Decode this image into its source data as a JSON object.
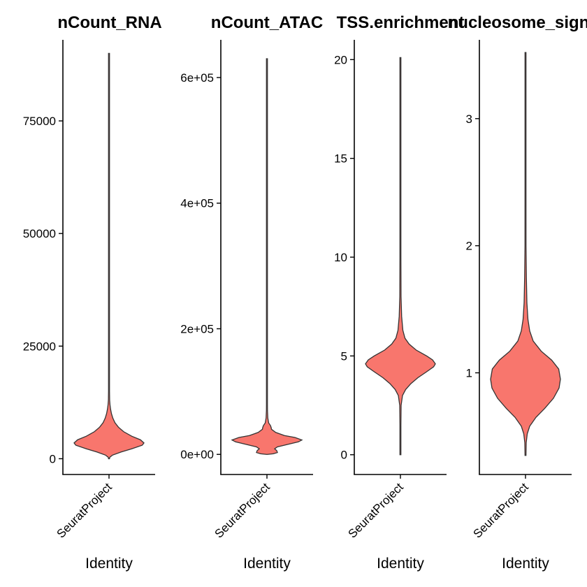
{
  "chart_data": [
    {
      "type": "violin",
      "title": "nCount_RNA",
      "xlabel": "Identity",
      "categories": [
        "SeuratProject"
      ],
      "ylim": [
        -3500,
        93000
      ],
      "yticks": [
        0,
        25000,
        50000,
        75000
      ],
      "ytick_labels": [
        "0",
        "25000",
        "50000",
        "75000"
      ],
      "fill": "#F8766D",
      "range": [
        0,
        90000
      ],
      "density": [
        [
          0,
          0.0
        ],
        [
          300,
          0.02
        ],
        [
          800,
          0.1
        ],
        [
          1500,
          0.35
        ],
        [
          2200,
          0.65
        ],
        [
          3000,
          0.95
        ],
        [
          3500,
          1.0
        ],
        [
          4200,
          0.9
        ],
        [
          5000,
          0.65
        ],
        [
          6000,
          0.42
        ],
        [
          7000,
          0.27
        ],
        [
          8000,
          0.17
        ],
        [
          9000,
          0.11
        ],
        [
          10000,
          0.07
        ],
        [
          11000,
          0.045
        ],
        [
          12000,
          0.028
        ],
        [
          13000,
          0.018
        ],
        [
          15000,
          0.01
        ],
        [
          20000,
          0.006
        ],
        [
          30000,
          0.004
        ],
        [
          50000,
          0.003
        ],
        [
          70000,
          0.0025
        ],
        [
          90000,
          0.0
        ]
      ]
    },
    {
      "type": "violin",
      "title": "nCount_ATAC",
      "xlabel": "Identity",
      "categories": [
        "SeuratProject"
      ],
      "ylim": [
        -32000,
        660000
      ],
      "yticks": [
        0,
        200000,
        400000,
        600000
      ],
      "ytick_labels": [
        "0e+00",
        "2e+05",
        "4e+05",
        "6e+05"
      ],
      "fill": "#F8766D",
      "range": [
        0,
        630000
      ],
      "density": [
        [
          0,
          0.0
        ],
        [
          1000,
          0.18
        ],
        [
          3000,
          0.3
        ],
        [
          6000,
          0.28
        ],
        [
          9000,
          0.22
        ],
        [
          12000,
          0.3
        ],
        [
          16000,
          0.6
        ],
        [
          20000,
          0.9
        ],
        [
          23000,
          1.0
        ],
        [
          27000,
          0.8
        ],
        [
          30000,
          0.5
        ],
        [
          35000,
          0.25
        ],
        [
          40000,
          0.13
        ],
        [
          43000,
          0.12
        ],
        [
          46000,
          0.1
        ],
        [
          50000,
          0.05
        ],
        [
          58000,
          0.025
        ],
        [
          70000,
          0.015
        ],
        [
          80000,
          0.01
        ],
        [
          100000,
          0.007
        ],
        [
          200000,
          0.005
        ],
        [
          400000,
          0.004
        ],
        [
          630000,
          0.0
        ]
      ]
    },
    {
      "type": "violin",
      "title": "TSS.enrichment",
      "xlabel": "Identity",
      "categories": [
        "SeuratProject"
      ],
      "ylim": [
        -1.0,
        21.0
      ],
      "yticks": [
        0,
        5,
        10,
        15,
        20
      ],
      "ytick_labels": [
        "0",
        "5",
        "10",
        "15",
        "20"
      ],
      "fill": "#F8766D",
      "range": [
        0,
        20.1
      ],
      "density": [
        [
          0,
          0.0
        ],
        [
          1.5,
          0.008
        ],
        [
          2.5,
          0.02
        ],
        [
          3.0,
          0.06
        ],
        [
          3.3,
          0.15
        ],
        [
          3.6,
          0.3
        ],
        [
          3.9,
          0.5
        ],
        [
          4.2,
          0.75
        ],
        [
          4.45,
          0.95
        ],
        [
          4.6,
          1.0
        ],
        [
          4.8,
          0.92
        ],
        [
          5.0,
          0.75
        ],
        [
          5.3,
          0.45
        ],
        [
          5.6,
          0.25
        ],
        [
          5.9,
          0.13
        ],
        [
          6.3,
          0.07
        ],
        [
          7.0,
          0.035
        ],
        [
          8.0,
          0.018
        ],
        [
          10.0,
          0.01
        ],
        [
          13.0,
          0.007
        ],
        [
          20.1,
          0.0
        ]
      ]
    },
    {
      "type": "violin",
      "title": "nucleosome_signal",
      "xlabel": "Identity",
      "categories": [
        "SeuratProject"
      ],
      "ylim": [
        0.2,
        3.62
      ],
      "yticks": [
        1,
        2,
        3
      ],
      "ytick_labels": [
        "1",
        "2",
        "3"
      ],
      "fill": "#F8766D",
      "range": [
        0.35,
        3.52
      ],
      "density": [
        [
          0.35,
          0.0
        ],
        [
          0.45,
          0.02
        ],
        [
          0.52,
          0.05
        ],
        [
          0.58,
          0.12
        ],
        [
          0.65,
          0.3
        ],
        [
          0.72,
          0.55
        ],
        [
          0.8,
          0.8
        ],
        [
          0.88,
          0.96
        ],
        [
          0.95,
          1.0
        ],
        [
          1.03,
          0.95
        ],
        [
          1.1,
          0.75
        ],
        [
          1.17,
          0.45
        ],
        [
          1.25,
          0.22
        ],
        [
          1.33,
          0.12
        ],
        [
          1.42,
          0.07
        ],
        [
          1.55,
          0.04
        ],
        [
          1.75,
          0.025
        ],
        [
          2.0,
          0.015
        ],
        [
          2.5,
          0.009
        ],
        [
          3.0,
          0.006
        ],
        [
          3.52,
          0.0
        ]
      ]
    }
  ]
}
